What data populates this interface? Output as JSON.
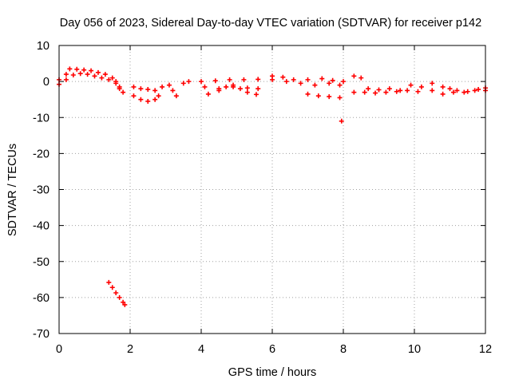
{
  "chart_data": {
    "type": "scatter",
    "title": "Day 056 of 2023, Sidereal Day-to-day VTEC variation (SDTVAR) for receiver p142",
    "xlabel": "GPS time / hours",
    "ylabel": "SDTVAR / TECUs",
    "xlim": [
      0,
      12
    ],
    "ylim": [
      -70,
      10
    ],
    "xticks": [
      0,
      2,
      4,
      6,
      8,
      10,
      12
    ],
    "xtick_labels": [
      "0",
      "2",
      "4",
      "6",
      "8",
      "10",
      "12"
    ],
    "yticks": [
      10,
      0,
      -10,
      -20,
      -30,
      -40,
      -50,
      -60,
      -70
    ],
    "ytick_labels": [
      "10",
      "0",
      "-10",
      "-20",
      "-30",
      "-40",
      "-50",
      "-60",
      "-70"
    ],
    "grid": true,
    "marker": "plus",
    "color": "#ff0000",
    "series": [
      {
        "name": "band-1",
        "points": [
          [
            0.0,
            0.5
          ],
          [
            0.2,
            2.0
          ],
          [
            0.3,
            3.5
          ],
          [
            0.5,
            3.4
          ],
          [
            0.7,
            3.2
          ],
          [
            0.9,
            3.0
          ],
          [
            1.1,
            2.5
          ],
          [
            1.3,
            2.0
          ],
          [
            1.5,
            1.0
          ],
          [
            1.6,
            0.0
          ],
          [
            1.7,
            -1.5
          ],
          [
            1.8,
            -3.0
          ]
        ]
      },
      {
        "name": "band-2",
        "points": [
          [
            0.0,
            -0.8
          ],
          [
            0.2,
            0.5
          ],
          [
            0.4,
            1.8
          ],
          [
            0.6,
            2.2
          ],
          [
            0.8,
            2.0
          ],
          [
            1.0,
            1.5
          ],
          [
            1.2,
            1.0
          ],
          [
            1.4,
            0.5
          ],
          [
            1.6,
            -0.5
          ],
          [
            1.7,
            -2.0
          ]
        ]
      },
      {
        "name": "band-3",
        "points": [
          [
            2.1,
            -1.5
          ],
          [
            2.3,
            -2.0
          ],
          [
            2.5,
            -2.2
          ],
          [
            2.7,
            -2.5
          ],
          [
            2.9,
            -1.5
          ],
          [
            3.1,
            -1.0
          ],
          [
            3.2,
            -2.5
          ]
        ]
      },
      {
        "name": "band-4",
        "points": [
          [
            2.1,
            -4.0
          ],
          [
            2.3,
            -5.0
          ],
          [
            2.5,
            -5.5
          ],
          [
            2.7,
            -5.0
          ],
          [
            2.8,
            -4.0
          ]
        ]
      },
      {
        "name": "band-5",
        "points": [
          [
            3.3,
            -4.0
          ],
          [
            3.5,
            -0.5
          ],
          [
            3.65,
            0.0
          ]
        ]
      },
      {
        "name": "band-6",
        "points": [
          [
            4.0,
            0.0
          ],
          [
            4.4,
            0.2
          ],
          [
            4.8,
            0.5
          ],
          [
            5.2,
            0.5
          ],
          [
            5.6,
            0.6
          ],
          [
            6.0,
            1.5
          ],
          [
            6.3,
            1.2
          ],
          [
            6.6,
            0.5
          ],
          [
            7.0,
            0.5
          ],
          [
            7.4,
            0.8
          ],
          [
            7.7,
            0.3
          ],
          [
            8.0,
            0.0
          ]
        ]
      },
      {
        "name": "band-7",
        "points": [
          [
            4.1,
            -1.5
          ],
          [
            4.5,
            -2.0
          ],
          [
            4.9,
            -1.5
          ],
          [
            5.3,
            -1.8
          ],
          [
            5.6,
            -2.0
          ],
          [
            6.0,
            0.5
          ],
          [
            6.4,
            0.0
          ],
          [
            6.8,
            -0.5
          ],
          [
            7.2,
            -1.0
          ],
          [
            7.6,
            -0.5
          ],
          [
            7.9,
            -1.0
          ]
        ]
      },
      {
        "name": "band-8",
        "points": [
          [
            4.2,
            -3.5
          ],
          [
            4.5,
            -2.5
          ],
          [
            4.7,
            -1.5
          ],
          [
            4.9,
            -1.0
          ],
          [
            5.1,
            -2.0
          ],
          [
            5.3,
            -3.0
          ],
          [
            5.55,
            -3.6
          ]
        ]
      },
      {
        "name": "band-9",
        "points": [
          [
            7.0,
            -3.5
          ],
          [
            7.3,
            -4.0
          ],
          [
            7.6,
            -4.2
          ],
          [
            7.9,
            -4.5
          ]
        ]
      },
      {
        "name": "band-10",
        "points": [
          [
            8.3,
            1.5
          ],
          [
            8.5,
            1.0
          ],
          [
            8.7,
            -2.0
          ],
          [
            9.0,
            -2.3
          ],
          [
            9.3,
            -2.0
          ],
          [
            9.6,
            -2.5
          ],
          [
            9.9,
            -1.0
          ],
          [
            10.2,
            -1.5
          ],
          [
            10.5,
            -0.5
          ]
        ]
      },
      {
        "name": "band-11",
        "points": [
          [
            8.3,
            -3.0
          ],
          [
            8.6,
            -3.0
          ],
          [
            8.9,
            -3.2
          ],
          [
            9.2,
            -3.0
          ],
          [
            9.5,
            -2.8
          ],
          [
            9.8,
            -2.5
          ],
          [
            10.1,
            -2.8
          ],
          [
            10.5,
            -2.5
          ]
        ]
      },
      {
        "name": "band-12",
        "points": [
          [
            10.8,
            -1.5
          ],
          [
            11.0,
            -2.0
          ],
          [
            11.2,
            -2.5
          ],
          [
            11.5,
            -2.8
          ],
          [
            11.8,
            -2.2
          ],
          [
            12.0,
            -1.8
          ]
        ]
      },
      {
        "name": "band-13",
        "points": [
          [
            10.8,
            -3.5
          ],
          [
            11.1,
            -3.0
          ],
          [
            11.4,
            -3.0
          ],
          [
            11.7,
            -2.5
          ],
          [
            12.0,
            -2.5
          ]
        ]
      },
      {
        "name": "outlier",
        "points": [
          [
            7.95,
            -11.0
          ]
        ]
      },
      {
        "name": "drop",
        "points": [
          [
            1.4,
            -55.8
          ],
          [
            1.5,
            -57.2
          ],
          [
            1.6,
            -58.7
          ],
          [
            1.7,
            -60.0
          ],
          [
            1.8,
            -61.3
          ],
          [
            1.85,
            -62.0
          ]
        ]
      }
    ]
  }
}
